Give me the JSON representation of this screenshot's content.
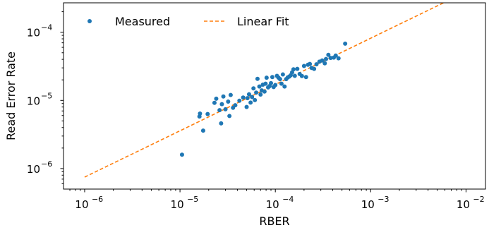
{
  "chart_data": {
    "type": "scatter",
    "title": "",
    "xlabel": "RBER",
    "ylabel": "Read Error Rate",
    "xscale": "log",
    "yscale": "log",
    "xlim": [
      6e-07,
      0.016
    ],
    "ylim": [
      5e-07,
      0.00027
    ],
    "grid": false,
    "legend_position": "upper-left",
    "x_ticks": [
      {
        "value": 1e-06,
        "base": "10",
        "exp": "−6"
      },
      {
        "value": 1e-05,
        "base": "10",
        "exp": "−5"
      },
      {
        "value": 0.0001,
        "base": "10",
        "exp": "−4"
      },
      {
        "value": 0.001,
        "base": "10",
        "exp": "−3"
      },
      {
        "value": 0.01,
        "base": "10",
        "exp": "−2"
      }
    ],
    "y_ticks": [
      {
        "value": 1e-06,
        "base": "10",
        "exp": "−6"
      },
      {
        "value": 1e-05,
        "base": "10",
        "exp": "−5"
      },
      {
        "value": 0.0001,
        "base": "10",
        "exp": "−4"
      }
    ],
    "series": [
      {
        "name": "Measured",
        "kind": "scatter",
        "color": "#1f77b4",
        "points": [
          [
            1.05e-05,
            1.6e-06
          ],
          [
            1.6e-05,
            5.8e-06
          ],
          [
            1.62e-05,
            6.4e-06
          ],
          [
            1.75e-05,
            3.6e-06
          ],
          [
            1.95e-05,
            6.3e-06
          ],
          [
            2.3e-05,
            9.2e-06
          ],
          [
            2.4e-05,
            1.06e-05
          ],
          [
            2.6e-05,
            7.2e-06
          ],
          [
            2.7e-05,
            4.6e-06
          ],
          [
            2.75e-05,
            8.8e-06
          ],
          [
            2.85e-05,
            1.14e-05
          ],
          [
            3e-05,
            7.4e-06
          ],
          [
            3.2e-05,
            9.6e-06
          ],
          [
            3.3e-05,
            5.9e-06
          ],
          [
            3.4e-05,
            1.2e-05
          ],
          [
            3.6e-05,
            7.8e-06
          ],
          [
            3.8e-05,
            8.5e-06
          ],
          [
            4.2e-05,
            9.9e-06
          ],
          [
            4.6e-05,
            1.1e-05
          ],
          [
            5e-05,
            8e-06
          ],
          [
            5.1e-05,
            1.08e-05
          ],
          [
            5.3e-05,
            1.23e-05
          ],
          [
            5.5e-05,
            9.3e-06
          ],
          [
            5.7e-05,
            1.12e-05
          ],
          [
            5.9e-05,
            1.5e-05
          ],
          [
            6.1e-05,
            1.01e-05
          ],
          [
            6.3e-05,
            1.3e-05
          ],
          [
            6.5e-05,
            2.07e-05
          ],
          [
            6.8e-05,
            1.6e-05
          ],
          [
            7e-05,
            1.22e-05
          ],
          [
            7.2e-05,
            1.4e-05
          ],
          [
            7.4e-05,
            1.7e-05
          ],
          [
            7.7e-05,
            1.35e-05
          ],
          [
            7.9e-05,
            1.76e-05
          ],
          [
            8.1e-05,
            2.15e-05
          ],
          [
            8.4e-05,
            1.55e-05
          ],
          [
            8.7e-05,
            1.62e-05
          ],
          [
            9e-05,
            1.79e-05
          ],
          [
            9.3e-05,
            2.2e-05
          ],
          [
            9.6e-05,
            1.57e-05
          ],
          [
            0.0001,
            1.68e-05
          ],
          [
            0.000104,
            2.29e-05
          ],
          [
            0.000108,
            2.15e-05
          ],
          [
            0.000112,
            2.05e-05
          ],
          [
            0.000116,
            1.76e-05
          ],
          [
            0.00012,
            2.4e-05
          ],
          [
            0.000125,
            1.6e-05
          ],
          [
            0.00013,
            2.05e-05
          ],
          [
            0.000135,
            2.17e-05
          ],
          [
            0.00014,
            2.24e-05
          ],
          [
            0.000145,
            2.34e-05
          ],
          [
            0.00015,
            2.58e-05
          ],
          [
            0.000155,
            2.86e-05
          ],
          [
            0.00016,
            2.29e-05
          ],
          [
            0.00017,
            2.9e-05
          ],
          [
            0.00018,
            2.44e-05
          ],
          [
            0.00019,
            2.28e-05
          ],
          [
            0.0002,
            3.2e-05
          ],
          [
            0.00021,
            2.2e-05
          ],
          [
            0.00022,
            3.34e-05
          ],
          [
            0.00023,
            3.43e-05
          ],
          [
            0.00024,
            3e-05
          ],
          [
            0.000255,
            2.9e-05
          ],
          [
            0.00027,
            3.39e-05
          ],
          [
            0.00029,
            3.7e-05
          ],
          [
            0.00031,
            3.85e-05
          ],
          [
            0.00033,
            3.5e-05
          ],
          [
            0.00034,
            4.05e-05
          ],
          [
            0.00036,
            4.65e-05
          ],
          [
            0.00038,
            4.2e-05
          ],
          [
            0.00041,
            4.25e-05
          ],
          [
            0.00043,
            4.55e-05
          ],
          [
            0.00046,
            4.15e-05
          ],
          [
            0.00054,
            6.8e-05
          ]
        ]
      },
      {
        "name": "Linear Fit",
        "kind": "line",
        "style": "dashed",
        "color": "#ff7f0e",
        "points": [
          [
            1e-06,
            7.5e-07
          ],
          [
            0.01,
            0.00039
          ]
        ]
      }
    ]
  }
}
